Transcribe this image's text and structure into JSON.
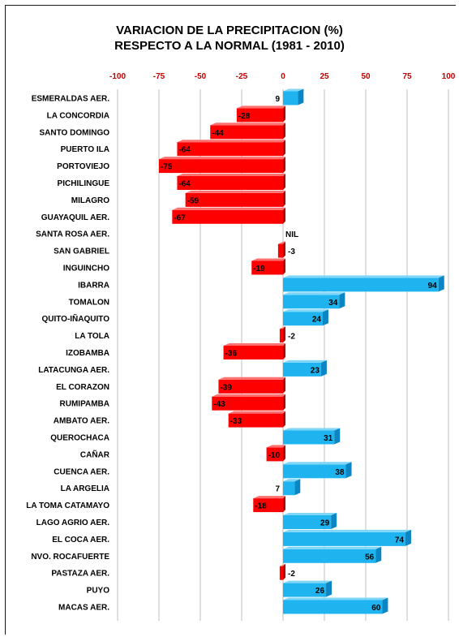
{
  "colors": {
    "negative": "#ff0000",
    "negative_side": "#b00000",
    "positive": "#1fb4f0",
    "positive_side": "#0b86c4",
    "grid": "#bfbfbf",
    "tick_text": "#c00000"
  },
  "chart_data": {
    "type": "bar",
    "orientation": "horizontal",
    "title": [
      "VARIACION DE LA PRECIPITACION (%)",
      "RESPECTO A LA NORMAL (1981 - 2010)"
    ],
    "xlabel": "",
    "ylabel": "",
    "xlim": [
      -100,
      100
    ],
    "xticks": [
      -100,
      -75,
      -50,
      -25,
      0,
      25,
      50,
      75,
      100
    ],
    "axis_position": "top",
    "grid": true,
    "categories": [
      "ESMERALDAS AER.",
      "LA CONCORDIA",
      "SANTO DOMINGO",
      "PUERTO ILA",
      "PORTOVIEJO",
      "PICHILINGUE",
      "MILAGRO",
      "GUAYAQUIL AER.",
      "SANTA ROSA AER.",
      "SAN GABRIEL",
      "INGUINCHO",
      "IBARRA",
      "TOMALON",
      "QUITO-IÑAQUITO",
      "LA TOLA",
      "IZOBAMBA",
      "LATACUNGA AER.",
      "EL CORAZON",
      "RUMIPAMBA",
      "AMBATO AER.",
      "QUEROCHACA",
      "CAÑAR",
      "CUENCA AER.",
      "LA ARGELIA",
      "LA TOMA CATAMAYO",
      "LAGO AGRIO AER.",
      "EL COCA AER.",
      "NVO. ROCAFUERTE",
      "PASTAZA AER.",
      "PUYO",
      "MACAS AER."
    ],
    "values": [
      9,
      -28,
      -44,
      -64,
      -75,
      -64,
      -59,
      -67,
      null,
      -3,
      -19,
      94,
      34,
      24,
      -2,
      -36,
      23,
      -39,
      -43,
      -33,
      31,
      -10,
      38,
      7,
      -18,
      29,
      74,
      56,
      -2,
      26,
      60
    ],
    "labels": [
      "9",
      "-28",
      "-44",
      "-64",
      "-75",
      "-64",
      "-59",
      "-67",
      "NIL",
      "-3",
      "-19",
      "94",
      "34",
      "24",
      "-2",
      "-36",
      "23",
      "-39",
      "-43",
      "-33",
      "31",
      "-10",
      "38",
      "7",
      "-18",
      "29",
      "74",
      "56",
      "-2",
      "26",
      "60"
    ]
  }
}
